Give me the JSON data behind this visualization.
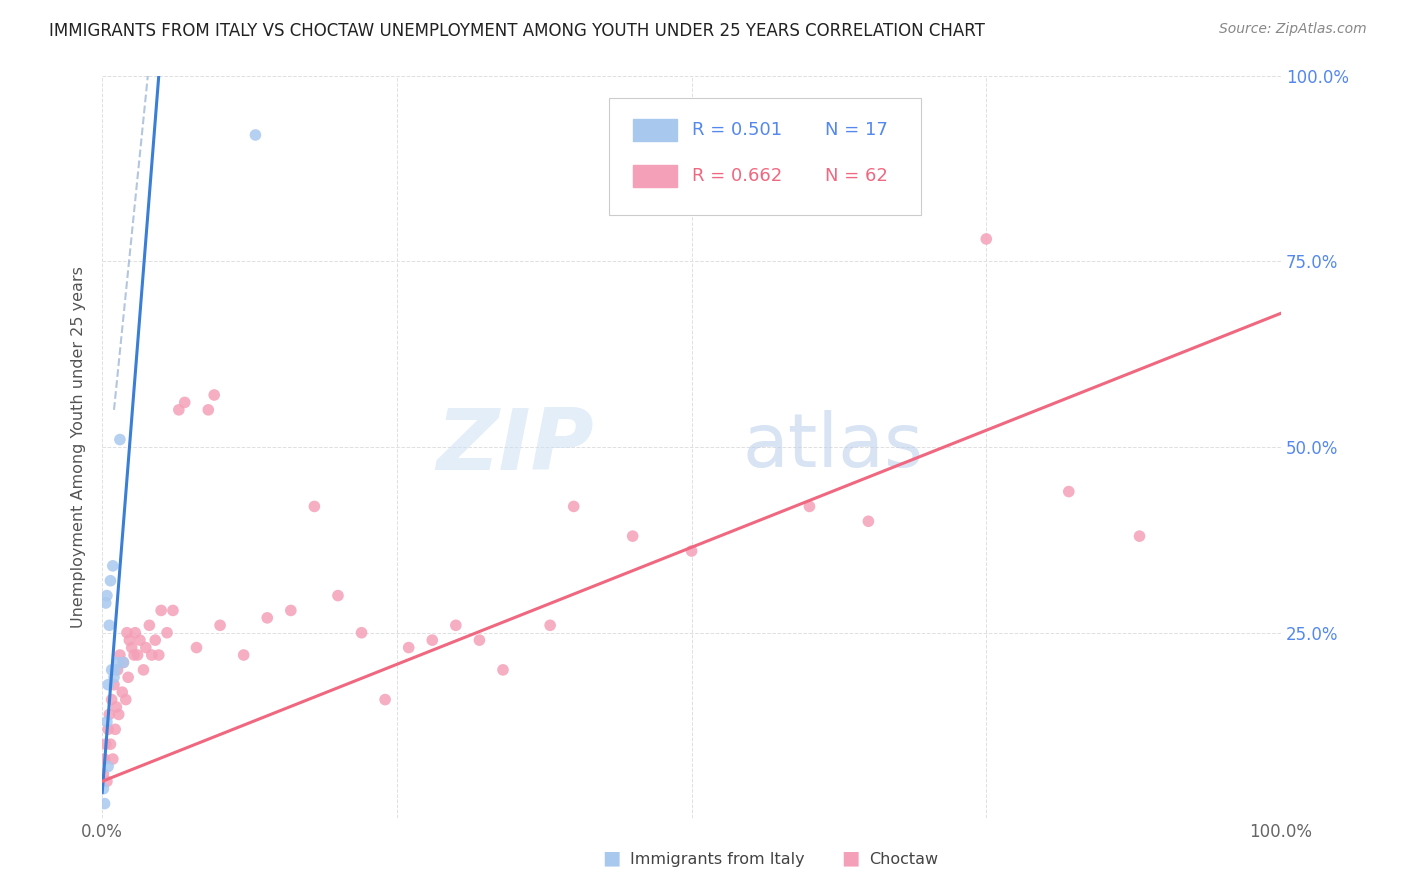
{
  "title": "IMMIGRANTS FROM ITALY VS CHOCTAW UNEMPLOYMENT AMONG YOUTH UNDER 25 YEARS CORRELATION CHART",
  "source": "Source: ZipAtlas.com",
  "ylabel": "Unemployment Among Youth under 25 years",
  "xlim": [
    0.0,
    1.0
  ],
  "ylim": [
    0.0,
    1.0
  ],
  "legend_italy_R": "R = 0.501",
  "legend_italy_N": "N = 17",
  "legend_choctaw_R": "R = 0.662",
  "legend_choctaw_N": "N = 62",
  "italy_color": "#a8c8ee",
  "choctaw_color": "#f4a0b8",
  "italy_line_color": "#3a7fd5",
  "italy_dash_color": "#a0b8d8",
  "choctaw_line_color": "#f06880",
  "italy_scatter_x": [
    0.001,
    0.002,
    0.003,
    0.004,
    0.004,
    0.005,
    0.005,
    0.006,
    0.007,
    0.008,
    0.009,
    0.01,
    0.011,
    0.013,
    0.015,
    0.018,
    0.13
  ],
  "italy_scatter_y": [
    0.04,
    0.02,
    0.29,
    0.3,
    0.13,
    0.07,
    0.18,
    0.26,
    0.32,
    0.2,
    0.34,
    0.19,
    0.2,
    0.21,
    0.51,
    0.21,
    0.92
  ],
  "choctaw_scatter_x": [
    0.001,
    0.002,
    0.003,
    0.004,
    0.005,
    0.006,
    0.007,
    0.008,
    0.009,
    0.01,
    0.011,
    0.012,
    0.013,
    0.014,
    0.015,
    0.017,
    0.018,
    0.02,
    0.021,
    0.022,
    0.023,
    0.025,
    0.027,
    0.028,
    0.03,
    0.032,
    0.035,
    0.037,
    0.04,
    0.042,
    0.045,
    0.048,
    0.05,
    0.055,
    0.06,
    0.065,
    0.07,
    0.08,
    0.09,
    0.095,
    0.1,
    0.12,
    0.14,
    0.16,
    0.18,
    0.2,
    0.22,
    0.24,
    0.26,
    0.28,
    0.3,
    0.32,
    0.34,
    0.38,
    0.4,
    0.45,
    0.5,
    0.6,
    0.65,
    0.75,
    0.82,
    0.88
  ],
  "choctaw_scatter_y": [
    0.06,
    0.08,
    0.1,
    0.05,
    0.12,
    0.14,
    0.1,
    0.16,
    0.08,
    0.18,
    0.12,
    0.15,
    0.2,
    0.14,
    0.22,
    0.17,
    0.21,
    0.16,
    0.25,
    0.19,
    0.24,
    0.23,
    0.22,
    0.25,
    0.22,
    0.24,
    0.2,
    0.23,
    0.26,
    0.22,
    0.24,
    0.22,
    0.28,
    0.25,
    0.28,
    0.55,
    0.56,
    0.23,
    0.55,
    0.57,
    0.26,
    0.22,
    0.27,
    0.28,
    0.42,
    0.3,
    0.25,
    0.16,
    0.23,
    0.24,
    0.26,
    0.24,
    0.2,
    0.26,
    0.42,
    0.38,
    0.36,
    0.42,
    0.4,
    0.78,
    0.44,
    0.38
  ],
  "italy_trend_x": [
    0.0,
    0.048
  ],
  "italy_trend_y": [
    0.035,
    1.0
  ],
  "choctaw_trend_x": [
    0.0,
    1.0
  ],
  "choctaw_trend_y": [
    0.05,
    0.68
  ]
}
